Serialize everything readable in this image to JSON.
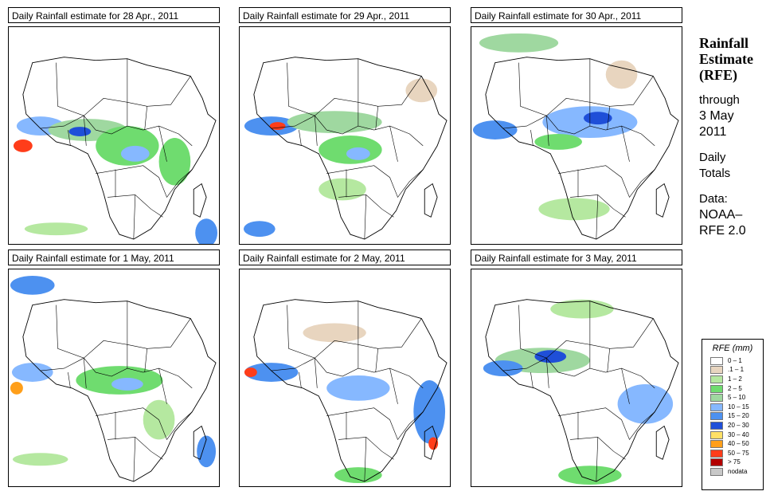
{
  "panels": [
    {
      "title": "Daily Rainfall estimate for  28 Apr., 2011",
      "date": "28 Apr., 2011"
    },
    {
      "title": "Daily Rainfall estimate for  29 Apr., 2011",
      "date": "29 Apr., 2011"
    },
    {
      "title": "Daily Rainfall estimate for  30 Apr., 2011",
      "date": "30 Apr., 2011"
    },
    {
      "title": "Daily Rainfall estimate for  1 May, 2011",
      "date": "1 May, 2011"
    },
    {
      "title": "Daily Rainfall estimate for  2 May, 2011",
      "date": "2 May, 2011"
    },
    {
      "title": "Daily Rainfall estimate for  3 May, 2011",
      "date": "3 May, 2011"
    }
  ],
  "info": {
    "heading_1": "Rainfall",
    "heading_2": "Estimate",
    "heading_3": "(RFE)",
    "through": "through",
    "date_1": "3 May",
    "date_2": "2011",
    "daily_1": "Daily",
    "daily_2": "Totals",
    "data_1": "Data:",
    "data_2": "NOAA–",
    "data_3": "RFE 2.0"
  },
  "legend": {
    "title": "RFE (mm)",
    "items": [
      {
        "label": "0 – 1",
        "color": "#ffffff"
      },
      {
        "label": ".1 – 1",
        "color": "#e8d5bf"
      },
      {
        "label": "1 – 2",
        "color": "#b5e8a0"
      },
      {
        "label": "2 – 5",
        "color": "#6fdc6f"
      },
      {
        "label": "5 – 10",
        "color": "#9fd8a0"
      },
      {
        "label": "10 – 15",
        "color": "#86b8ff"
      },
      {
        "label": "15 – 20",
        "color": "#4d91f0"
      },
      {
        "label": "20 – 30",
        "color": "#1f4fd8"
      },
      {
        "label": "30 – 40",
        "color": "#ffe066"
      },
      {
        "label": "40 – 50",
        "color": "#ff9f1a"
      },
      {
        "label": "50 – 75",
        "color": "#ff3d1a"
      },
      {
        "label": "> 75",
        "color": "#b30000"
      },
      {
        "label": "nodata",
        "color": "#c8c8c8"
      }
    ]
  }
}
